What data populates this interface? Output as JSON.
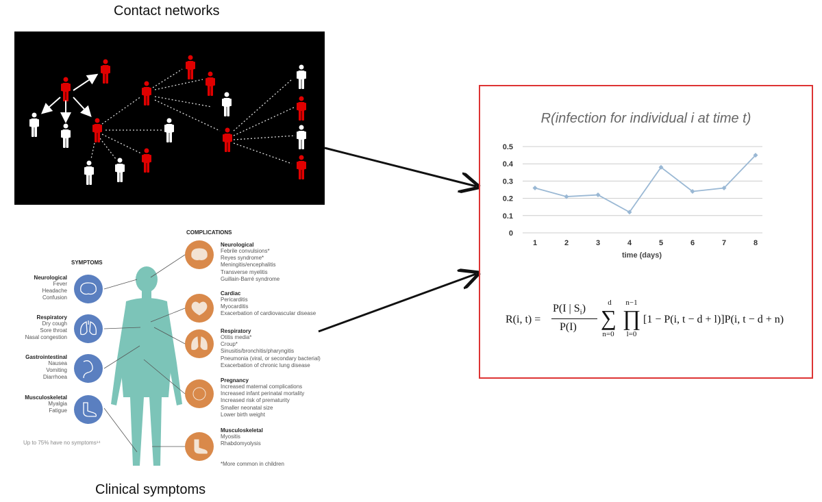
{
  "titles": {
    "contact": "Contact networks",
    "clinical": "Clinical symptoms"
  },
  "chart_data": {
    "type": "line",
    "title": "R(infection for individual i at time t)",
    "xlabel": "time (days)",
    "ylabel": "",
    "categories": [
      "1",
      "2",
      "3",
      "4",
      "5",
      "6",
      "7",
      "8"
    ],
    "values": [
      0.26,
      0.21,
      0.22,
      0.12,
      0.38,
      0.24,
      0.26,
      0.45
    ],
    "ylim": [
      0,
      0.5
    ],
    "yticks": [
      "0",
      "0.1",
      "0.2",
      "0.3",
      "0.4",
      "0.5"
    ],
    "grid": true,
    "color": "#9ab8d4"
  },
  "formula": {
    "lhs": "R(i, t) =",
    "num": "P(I | S",
    "num_sub": "i",
    "num_close": ")",
    "den": "P(I)",
    "sum_top": "d",
    "sum_bottom": "n=0",
    "prod_top": "n−1",
    "prod_bottom": "l=0",
    "body": "[1 − P(i, t − d + l)]P(i, t − d + n)"
  },
  "symptoms": {
    "header": "SYMPTOMS",
    "groups": [
      {
        "title": "Neurological",
        "items": [
          "Fever",
          "Headache",
          "Confusion"
        ]
      },
      {
        "title": "Respiratory",
        "items": [
          "Dry cough",
          "Sore throat",
          "Nasal congestion"
        ]
      },
      {
        "title": "Gastrointestinal",
        "items": [
          "Nausea",
          "Vomiting",
          "Diarrhoea"
        ]
      },
      {
        "title": "Musculoskeletal",
        "items": [
          "Myalgia",
          "Fatigue"
        ]
      }
    ],
    "footnote": "Up to 75% have no symptoms¹⁴"
  },
  "complications": {
    "header": "COMPLICATIONS",
    "groups": [
      {
        "title": "Neurological",
        "items": [
          "Febrile convulsions*",
          "Reyes syndrome*",
          "Meningitis/encephalitis",
          "Transverse myelitis",
          "Guillain-Barré syndrome"
        ]
      },
      {
        "title": "Cardiac",
        "items": [
          "Pericarditis",
          "Myocarditis",
          "Exacerbation of cardiovascular disease"
        ]
      },
      {
        "title": "Respiratory",
        "items": [
          "Otitis media*",
          "Croup*",
          "Sinusitis/bronchitis/pharyngitis",
          "Pneumonia (viral, or secondary bacterial)",
          "Exacerbation of chronic lung disease"
        ]
      },
      {
        "title": "Pregnancy",
        "items": [
          "Increased maternal complications",
          "Increased infant perinatal mortality",
          "Increased risk of prematurity",
          "Smaller neonatal size",
          "Lower birth weight"
        ]
      },
      {
        "title": "Musculoskeletal",
        "items": [
          "Myositis",
          "Rhabdomyolysis"
        ]
      }
    ],
    "footnote": "*More common in children"
  },
  "colors": {
    "infected": "#e00000",
    "healthy": "#ffffff",
    "symptom_circle": "#5a7fc0",
    "complication_circle": "#d9894a",
    "body": "#7cc4b8",
    "frame": "#dd3333"
  }
}
